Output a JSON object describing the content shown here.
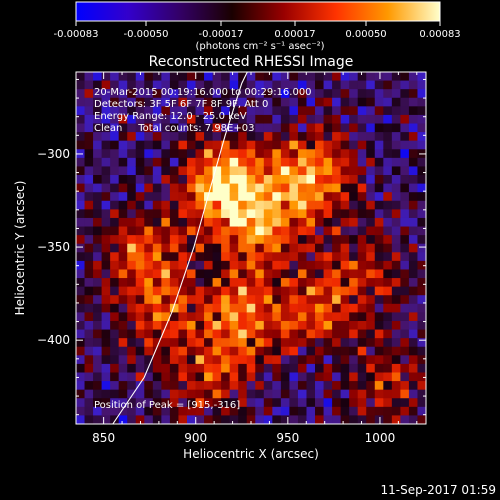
{
  "colorbar": {
    "tick_labels": [
      "-0.00083",
      "-0.00050",
      "-0.00017",
      "0.00017",
      "0.00050",
      "0.00083"
    ],
    "unit_label": "(photons cm⁻² s⁻¹ asec⁻²)",
    "range": [
      -0.00083,
      0.00083
    ],
    "colors": [
      "#0000ff",
      "#3300cc",
      "#330066",
      "#1a0000",
      "#990000",
      "#ff3300",
      "#ff9900",
      "#ffffcc"
    ]
  },
  "chart_data": {
    "type": "heatmap",
    "title": "Reconstructed RHESSI Image",
    "xlabel": "Heliocentric X (arcsec)",
    "ylabel": "Heliocentric Y (arcsec)",
    "xlim": [
      835,
      1025
    ],
    "ylim": [
      -445,
      -256
    ],
    "xticks": [
      850,
      900,
      950,
      1000
    ],
    "yticks": [
      -300,
      -350,
      -400
    ],
    "annotation_lines": [
      "20-Mar-2015 00:19:16.000 to 00:29:16.000",
      "Detectors: 3F 5F 6F 7F 8F 9F, Att 0",
      "Energy Range: 12.0 - 25.0 keV",
      "Clean     Total counts: 7.98E+03"
    ],
    "peak_label": "Position of Peak = [915,-316]",
    "peak": [
      915,
      -316
    ],
    "limb_curve": [
      [
        855,
        -445
      ],
      [
        872,
        -420
      ],
      [
        887,
        -385
      ],
      [
        899,
        -350
      ],
      [
        908,
        -318
      ],
      [
        916,
        -290
      ],
      [
        925,
        -262
      ],
      [
        928,
        -256
      ]
    ],
    "sources": [
      {
        "x": 915,
        "y": -316,
        "strength": 1.0
      },
      {
        "x": 962,
        "y": -312,
        "strength": 0.85
      },
      {
        "x": 935,
        "y": -340,
        "strength": 0.7
      },
      {
        "x": 872,
        "y": -352,
        "strength": 0.6
      },
      {
        "x": 925,
        "y": -387,
        "strength": 0.75
      },
      {
        "x": 880,
        "y": -385,
        "strength": 0.55
      },
      {
        "x": 990,
        "y": -365,
        "strength": 0.45
      },
      {
        "x": 905,
        "y": -420,
        "strength": 0.45
      },
      {
        "x": 965,
        "y": -385,
        "strength": 0.5
      },
      {
        "x": 1005,
        "y": -425,
        "strength": 0.4
      }
    ]
  },
  "footer": {
    "timestamp": "11-Sep-2017 01:59"
  }
}
